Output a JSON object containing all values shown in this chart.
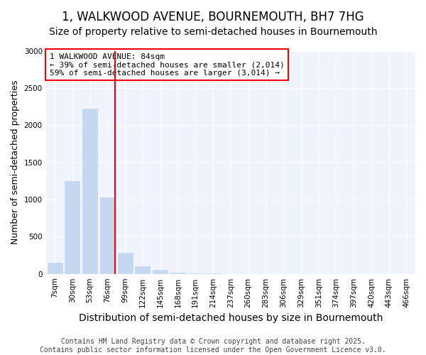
{
  "title": "1, WALKWOOD AVENUE, BOURNEMOUTH, BH7 7HG",
  "subtitle": "Size of property relative to semi-detached houses in Bournemouth",
  "xlabel": "Distribution of semi-detached houses by size in Bournemouth",
  "ylabel": "Number of semi-detached properties",
  "categories": [
    "7sqm",
    "30sqm",
    "53sqm",
    "76sqm",
    "99sqm",
    "122sqm",
    "145sqm",
    "168sqm",
    "191sqm",
    "214sqm",
    "237sqm",
    "260sqm",
    "283sqm",
    "306sqm",
    "329sqm",
    "351sqm",
    "374sqm",
    "397sqm",
    "420sqm",
    "443sqm",
    "466sqm"
  ],
  "values": [
    150,
    1250,
    2220,
    1030,
    280,
    100,
    50,
    20,
    5,
    2,
    0,
    0,
    0,
    0,
    0,
    0,
    0,
    0,
    0,
    0,
    0
  ],
  "bar_color": "#c5d8f0",
  "bar_edge_color": "#c5d8f0",
  "vline_color": "red",
  "vline_x_index": 3,
  "annotation_text": "1 WALKWOOD AVENUE: 84sqm\n← 39% of semi-detached houses are smaller (2,014)\n59% of semi-detached houses are larger (3,014) →",
  "annotation_box_color": "white",
  "annotation_box_edge": "red",
  "ylim": [
    0,
    3000
  ],
  "yticks": [
    0,
    500,
    1000,
    1500,
    2000,
    2500,
    3000
  ],
  "footer": "Contains HM Land Registry data © Crown copyright and database right 2025.\nContains public sector information licensed under the Open Government Licence v3.0.",
  "bg_color": "#ffffff",
  "plot_bg_color": "#f0f4ff",
  "grid_color": "#ffffff",
  "title_fontsize": 12,
  "subtitle_fontsize": 10,
  "axis_label_fontsize": 9,
  "tick_fontsize": 7.5,
  "footer_fontsize": 7,
  "annotation_fontsize": 8
}
